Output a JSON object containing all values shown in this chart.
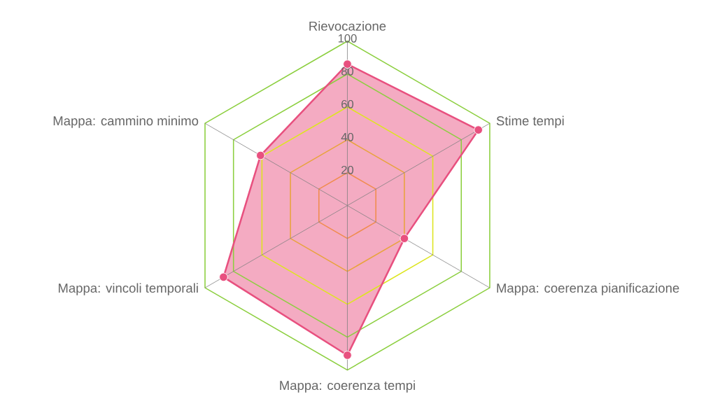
{
  "chart_data": {
    "type": "radar",
    "categories": [
      "Rievocazione",
      "Stime tempi",
      "Mappa: coerenza pianificazione",
      "Mappa: coerenza tempi",
      "Mappa: vincoli temporali",
      "Mappa: cammino minimo"
    ],
    "series": [
      {
        "color": "#e8507f",
        "values": [
          86,
          92,
          40,
          91,
          87,
          61
        ]
      }
    ],
    "ylim": [
      0,
      100
    ],
    "yticks": [
      20,
      40,
      60,
      80,
      100
    ],
    "grid": true,
    "marker": "circle"
  }
}
